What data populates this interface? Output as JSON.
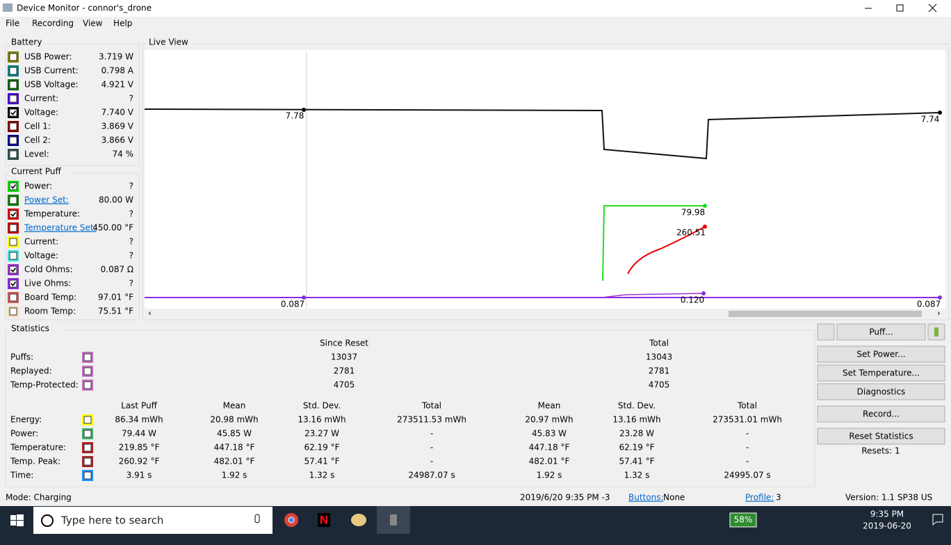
{
  "window": {
    "title": "Device Monitor - connor's_drone"
  },
  "menu": [
    "File",
    "Recording",
    "View",
    "Help"
  ],
  "battery": {
    "title": "Battery",
    "rows": [
      {
        "label": "USB Power:",
        "value": "3.719 W",
        "color": "#808000",
        "checked": false
      },
      {
        "label": "USB Current:",
        "value": "0.798 A",
        "color": "#008080",
        "checked": false
      },
      {
        "label": "USB Voltage:",
        "value": "4.921 V",
        "color": "#006400",
        "checked": false
      },
      {
        "label": "Current:",
        "value": "?",
        "color": "#4b00d0",
        "checked": false
      },
      {
        "label": "Voltage:",
        "value": "7.740 V",
        "color": "#000000",
        "checked": true
      },
      {
        "label": "Cell 1:",
        "value": "3.869 V",
        "color": "#800000",
        "checked": false
      },
      {
        "label": "Cell 2:",
        "value": "3.866 V",
        "color": "#00008b",
        "checked": false
      },
      {
        "label": "Level:",
        "value": "74 %",
        "color": "#2f4f4f",
        "checked": false
      }
    ]
  },
  "puff": {
    "title": "Current Puff",
    "rows": [
      {
        "label": "Power:",
        "value": "?",
        "color": "#00e000",
        "checked": true
      },
      {
        "label": "Power Set:",
        "value": "80.00 W",
        "color": "#008000",
        "checked": false,
        "link": true
      },
      {
        "label": "Temperature:",
        "value": "?",
        "color": "#e00000",
        "checked": true
      },
      {
        "label": "Temperature Set:",
        "value": "450.00 °F",
        "color": "#c00000",
        "checked": false,
        "link": true
      },
      {
        "label": "Current:",
        "value": "?",
        "color": "#ffff00",
        "checked": false
      },
      {
        "label": "Voltage:",
        "value": "?",
        "color": "#40e0e0",
        "checked": false
      },
      {
        "label": "Cold Ohms:",
        "value": "0.087 Ω",
        "color": "#9932cc",
        "checked": true
      },
      {
        "label": "Live Ohms:",
        "value": "?",
        "color": "#8a2be2",
        "checked": true
      },
      {
        "label": "Board Temp:",
        "value": "97.01 °F",
        "color": "#cd5c5c",
        "checked": false
      },
      {
        "label": "Room Temp:",
        "value": "75.51 °F",
        "color": "#f5deb3",
        "checked": false
      }
    ]
  },
  "live_view": {
    "title": "Live View",
    "labels": [
      "7.78",
      "7.74",
      "79.98",
      "260.51",
      "0.087",
      "0.120",
      "0.087"
    ]
  },
  "statistics": {
    "title": "Statistics",
    "header1": [
      "Since Reset",
      "Total"
    ],
    "rows1": [
      {
        "label": "Puffs:",
        "color": "#c070c0",
        "cells": [
          "13037",
          "13043"
        ]
      },
      {
        "label": "Replayed:",
        "color": "#c070c0",
        "cells": [
          "2781",
          "2781"
        ]
      },
      {
        "label": "Temp-Protected:",
        "color": "#c070c0",
        "cells": [
          "4705",
          "4705"
        ]
      }
    ],
    "header2": [
      "Last Puff",
      "Mean",
      "Std. Dev.",
      "Total",
      "Mean",
      "Std. Dev.",
      "Total"
    ],
    "rows2": [
      {
        "label": "Energy:",
        "color": "#ffff00",
        "cells": [
          "86.34 mWh",
          "20.98 mWh",
          "13.16 mWh",
          "273511.53 mWh",
          "20.97 mWh",
          "13.16 mWh",
          "273531.01 mWh"
        ]
      },
      {
        "label": "Power:",
        "color": "#3cb371",
        "cells": [
          "79.44 W",
          "45.85 W",
          "23.27 W",
          "-",
          "45.83 W",
          "23.28 W",
          "-"
        ]
      },
      {
        "label": "Temperature:",
        "color": "#b22222",
        "cells": [
          "219.85 °F",
          "447.18 °F",
          "62.19 °F",
          "-",
          "447.18 °F",
          "62.19 °F",
          "-"
        ]
      },
      {
        "label": "Temp. Peak:",
        "color": "#a52a2a",
        "cells": [
          "260.92 °F",
          "482.01 °F",
          "57.41 °F",
          "-",
          "482.01 °F",
          "57.41 °F",
          "-"
        ]
      },
      {
        "label": "Time:",
        "color": "#1e90ff",
        "cells": [
          "3.91 s",
          "1.92 s",
          "1.32 s",
          "24987.07 s",
          "1.92 s",
          "1.32 s",
          "24995.07 s"
        ]
      }
    ]
  },
  "buttons": [
    "Puff...",
    "Set Power...",
    "Set Temperature...",
    "Diagnostics",
    "Record...",
    "Reset Statistics"
  ],
  "resets": "Resets: 1",
  "status": {
    "mode": "Mode: Charging",
    "datetime": "2019/6/20 9:35 PM -3",
    "buttons_label": "Buttons:",
    "buttons_value": "None",
    "profile_label": "Profile:",
    "profile_value": "3",
    "version": "Version: 1.1 SP38 US"
  },
  "taskbar": {
    "search": "Type here to search",
    "battery": "58%",
    "time": "9:35 PM",
    "date": "2019-06-20"
  }
}
